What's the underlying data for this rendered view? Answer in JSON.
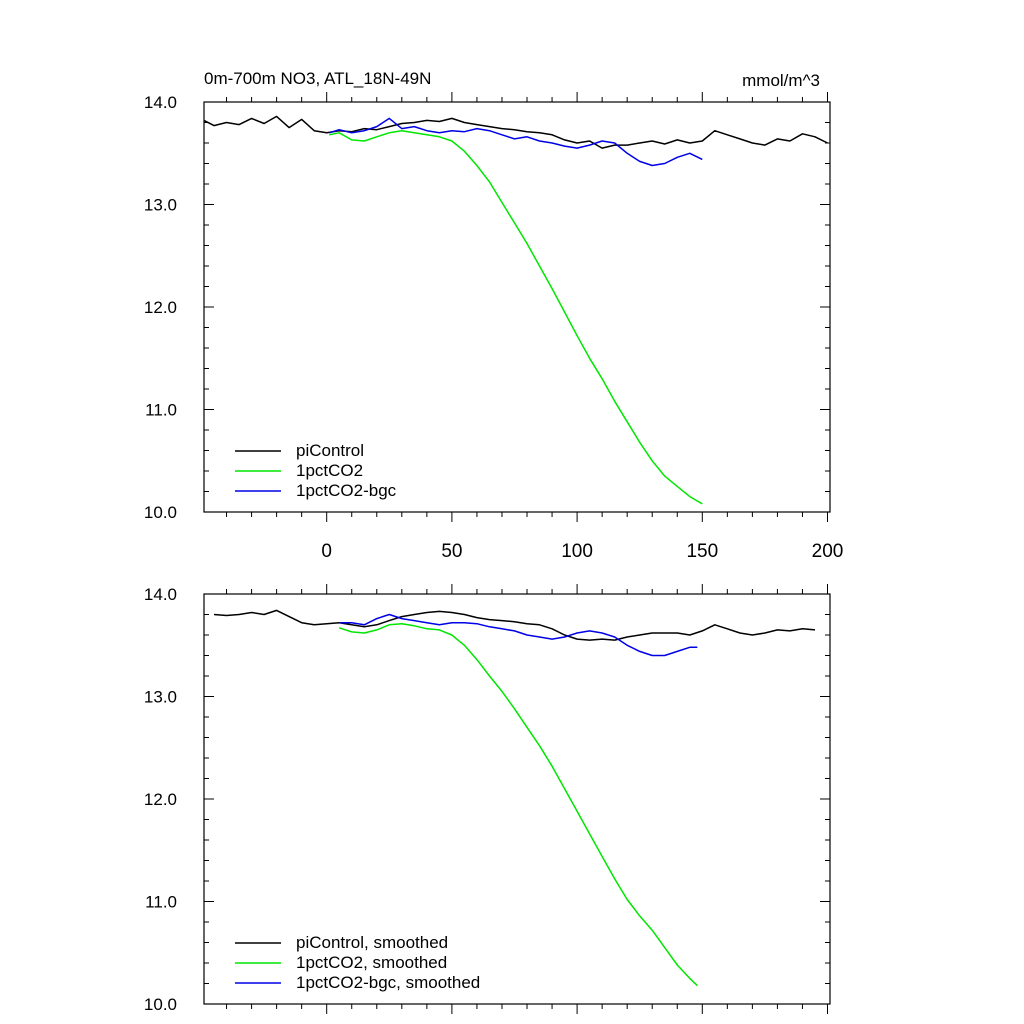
{
  "figure": {
    "title": "0m-700m NO3, ATL_18N-49N",
    "units": "mmol/m^3"
  },
  "colors": {
    "piControl": "#000000",
    "1pctCO2": "#00e600",
    "1pctCO2-bgc": "#0000e6"
  },
  "chart_data": [
    {
      "type": "line",
      "panel": "top",
      "title": "0m-700m NO3, ATL_18N-49N",
      "ylabel": "mmol/m^3",
      "xlim": [
        -49,
        201
      ],
      "ylim": [
        10.0,
        14.0
      ],
      "x_ticks": [
        0,
        50,
        100,
        150,
        200
      ],
      "y_ticks": [
        "10.0",
        "11.0",
        "12.0",
        "13.0",
        "14.0"
      ],
      "grid": false,
      "legend": "bottom-left",
      "series": [
        {
          "name": "piControl",
          "color": "#000000",
          "x": [
            -49,
            -45,
            -40,
            -35,
            -30,
            -25,
            -20,
            -15,
            -10,
            -5,
            0,
            5,
            10,
            15,
            20,
            25,
            30,
            35,
            40,
            45,
            50,
            55,
            60,
            65,
            70,
            75,
            80,
            85,
            90,
            95,
            100,
            105,
            110,
            115,
            120,
            125,
            130,
            135,
            140,
            145,
            150,
            155,
            160,
            165,
            170,
            175,
            180,
            185,
            190,
            195,
            200
          ],
          "values": [
            13.82,
            13.77,
            13.8,
            13.78,
            13.84,
            13.79,
            13.86,
            13.75,
            13.83,
            13.72,
            13.7,
            13.72,
            13.71,
            13.74,
            13.73,
            13.76,
            13.79,
            13.8,
            13.82,
            13.81,
            13.84,
            13.8,
            13.78,
            13.76,
            13.74,
            13.73,
            13.71,
            13.7,
            13.68,
            13.63,
            13.6,
            13.62,
            13.55,
            13.58,
            13.58,
            13.6,
            13.62,
            13.59,
            13.63,
            13.6,
            13.62,
            13.72,
            13.68,
            13.64,
            13.6,
            13.58,
            13.64,
            13.62,
            13.69,
            13.66,
            13.6
          ]
        },
        {
          "name": "1pctCO2",
          "color": "#00e600",
          "x": [
            1,
            5,
            10,
            15,
            20,
            25,
            30,
            35,
            40,
            45,
            50,
            55,
            60,
            65,
            70,
            75,
            80,
            85,
            90,
            95,
            100,
            105,
            110,
            115,
            120,
            125,
            130,
            135,
            140,
            145,
            150
          ],
          "values": [
            13.68,
            13.7,
            13.63,
            13.62,
            13.66,
            13.7,
            13.72,
            13.7,
            13.68,
            13.66,
            13.62,
            13.52,
            13.38,
            13.22,
            13.02,
            12.82,
            12.62,
            12.4,
            12.18,
            11.95,
            11.72,
            11.5,
            11.3,
            11.08,
            10.88,
            10.68,
            10.5,
            10.35,
            10.25,
            10.15,
            10.08
          ]
        },
        {
          "name": "1pctCO2-bgc",
          "color": "#0000e6",
          "x": [
            1,
            5,
            10,
            15,
            20,
            25,
            30,
            35,
            40,
            45,
            50,
            55,
            60,
            65,
            70,
            75,
            80,
            85,
            90,
            95,
            100,
            105,
            110,
            115,
            120,
            125,
            130,
            135,
            140,
            145,
            150
          ],
          "values": [
            13.7,
            13.73,
            13.7,
            13.72,
            13.76,
            13.84,
            13.74,
            13.76,
            13.72,
            13.7,
            13.72,
            13.71,
            13.74,
            13.72,
            13.68,
            13.64,
            13.66,
            13.62,
            13.6,
            13.57,
            13.55,
            13.58,
            13.62,
            13.6,
            13.5,
            13.42,
            13.38,
            13.4,
            13.46,
            13.5,
            13.44
          ]
        }
      ]
    },
    {
      "type": "line",
      "panel": "bottom",
      "xlim": [
        -49,
        201
      ],
      "ylim": [
        10.0,
        14.0
      ],
      "y_ticks": [
        "10.0",
        "11.0",
        "12.0",
        "13.0",
        "14.0"
      ],
      "grid": false,
      "legend": "bottom-left",
      "series": [
        {
          "name": "piControl, smoothed",
          "color": "#000000",
          "x": [
            -45,
            -40,
            -35,
            -30,
            -25,
            -20,
            -15,
            -10,
            -5,
            0,
            5,
            10,
            15,
            20,
            25,
            30,
            35,
            40,
            45,
            50,
            55,
            60,
            65,
            70,
            75,
            80,
            85,
            90,
            95,
            100,
            105,
            110,
            115,
            120,
            125,
            130,
            135,
            140,
            145,
            150,
            155,
            160,
            165,
            170,
            175,
            180,
            185,
            190,
            195
          ],
          "values": [
            13.8,
            13.79,
            13.8,
            13.82,
            13.8,
            13.84,
            13.78,
            13.72,
            13.7,
            13.71,
            13.72,
            13.7,
            13.68,
            13.7,
            13.74,
            13.78,
            13.8,
            13.82,
            13.83,
            13.82,
            13.8,
            13.77,
            13.75,
            13.74,
            13.73,
            13.71,
            13.7,
            13.66,
            13.6,
            13.56,
            13.55,
            13.56,
            13.55,
            13.58,
            13.6,
            13.62,
            13.62,
            13.62,
            13.6,
            13.64,
            13.7,
            13.66,
            13.62,
            13.6,
            13.62,
            13.65,
            13.64,
            13.66,
            13.65
          ]
        },
        {
          "name": "1pctCO2, smoothed",
          "color": "#00e600",
          "x": [
            5,
            10,
            15,
            20,
            25,
            30,
            35,
            40,
            45,
            50,
            55,
            60,
            65,
            70,
            75,
            80,
            85,
            90,
            95,
            100,
            105,
            110,
            115,
            120,
            125,
            130,
            135,
            140,
            145,
            148
          ],
          "values": [
            13.67,
            13.63,
            13.62,
            13.65,
            13.7,
            13.71,
            13.69,
            13.66,
            13.65,
            13.6,
            13.5,
            13.36,
            13.2,
            13.05,
            12.88,
            12.7,
            12.52,
            12.32,
            12.1,
            11.88,
            11.66,
            11.44,
            11.22,
            11.02,
            10.86,
            10.72,
            10.55,
            10.38,
            10.25,
            10.18
          ]
        },
        {
          "name": "1pctCO2-bgc, smoothed",
          "color": "#0000e6",
          "x": [
            5,
            10,
            15,
            20,
            25,
            30,
            35,
            40,
            45,
            50,
            55,
            60,
            65,
            70,
            75,
            80,
            85,
            90,
            95,
            100,
            105,
            110,
            115,
            120,
            125,
            130,
            135,
            140,
            145,
            148
          ],
          "values": [
            13.72,
            13.72,
            13.7,
            13.76,
            13.8,
            13.76,
            13.74,
            13.72,
            13.7,
            13.72,
            13.72,
            13.71,
            13.68,
            13.66,
            13.64,
            13.6,
            13.58,
            13.56,
            13.58,
            13.62,
            13.64,
            13.62,
            13.58,
            13.5,
            13.44,
            13.4,
            13.4,
            13.44,
            13.48,
            13.48
          ]
        }
      ]
    }
  ]
}
